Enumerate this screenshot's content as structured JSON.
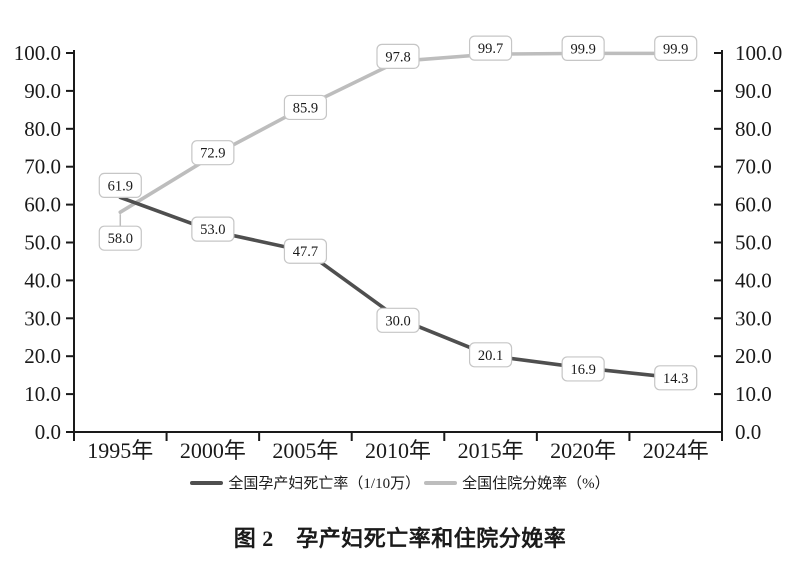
{
  "figure": {
    "caption": "图 2　孕产妇死亡率和住院分娩率"
  },
  "chart_data": {
    "type": "line",
    "title": "图 2　孕产妇死亡率和住院分娩率",
    "categories": [
      "1995年",
      "2000年",
      "2005年",
      "2010年",
      "2015年",
      "2020年",
      "2024年"
    ],
    "series": [
      {
        "name": "全国孕产妇死亡率（1/10万）",
        "values": [
          61.9,
          53.0,
          47.7,
          30.0,
          20.1,
          16.9,
          14.3
        ],
        "color": "#4f4f4f"
      },
      {
        "name": "全国住院分娩率（%）",
        "values": [
          58.0,
          72.9,
          85.9,
          97.8,
          99.7,
          99.9,
          99.9
        ],
        "color": "#bdbdbd"
      }
    ],
    "ylim": [
      0,
      100
    ],
    "ytick_step": 10,
    "tick_label_decimals": 1,
    "dual_y_axis": true,
    "grid": false,
    "legend_position": "bottom",
    "data_labels": true,
    "data_label_box": {
      "fill": "#ffffff",
      "border": "#c6c6c6"
    },
    "axis_color": "#1a1a1a",
    "label_dy": [
      [
        -12,
        -2,
        0,
        2,
        -1,
        1,
        0
      ],
      [
        26,
        -3,
        1,
        -5,
        -6,
        -5,
        -5
      ]
    ],
    "leader_line": {
      "series": 1,
      "point": 0
    }
  }
}
